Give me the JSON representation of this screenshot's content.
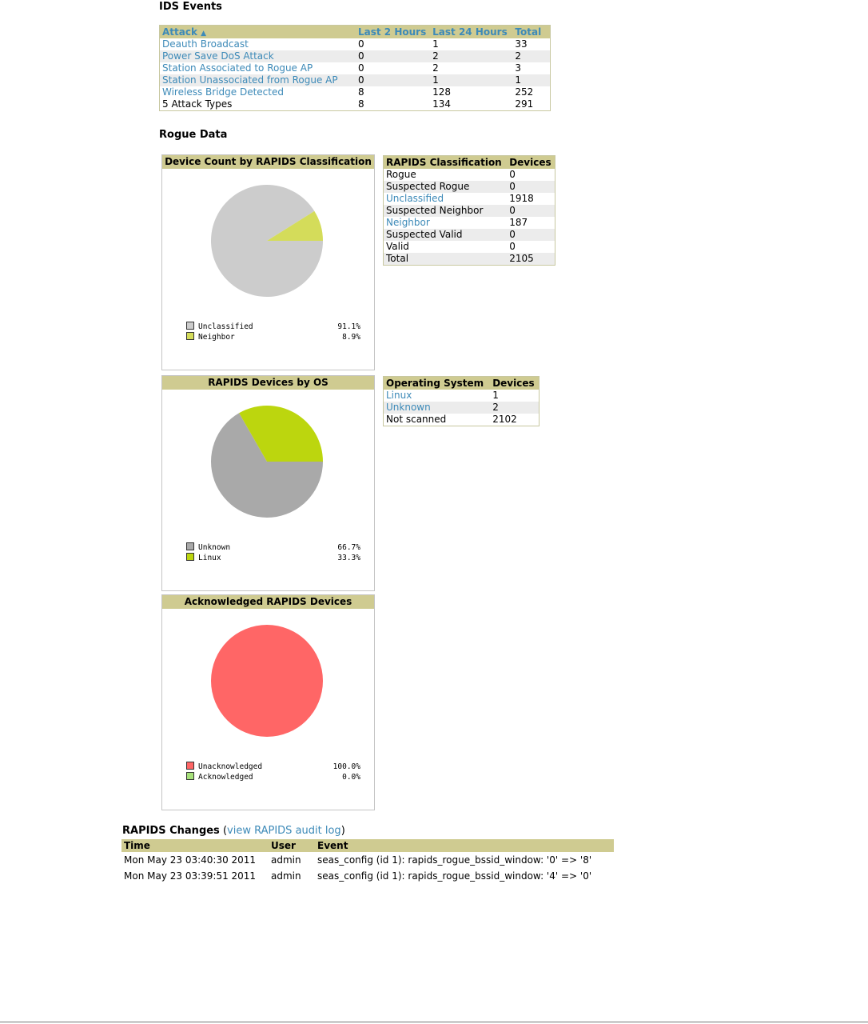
{
  "ids": {
    "title": "IDS Events",
    "headers": {
      "attack": "Attack",
      "sort_icon": "▲",
      "last2": "Last 2 Hours",
      "last24": "Last 24 Hours",
      "total": "Total"
    },
    "rows": [
      {
        "attack": "Deauth Broadcast",
        "last2": "0",
        "last24": "1",
        "total": "33"
      },
      {
        "attack": "Power Save DoS Attack",
        "last2": "0",
        "last24": "2",
        "total": "2"
      },
      {
        "attack": "Station Associated to Rogue AP",
        "last2": "0",
        "last24": "2",
        "total": "3"
      },
      {
        "attack": "Station Unassociated from Rogue AP",
        "last2": "0",
        "last24": "1",
        "total": "1"
      },
      {
        "attack": "Wireless Bridge Detected",
        "last2": "8",
        "last24": "128",
        "total": "252"
      }
    ],
    "footer": {
      "attack": "5 Attack Types",
      "last2": "8",
      "last24": "134",
      "total": "291"
    }
  },
  "rogue": {
    "title": "Rogue Data",
    "classification_panel": {
      "title": "Device Count by RAPIDS Classification",
      "legend": [
        {
          "label": "Unclassified",
          "pct": "91.1%",
          "color": "#cccccc"
        },
        {
          "label": "Neighbor",
          "pct": "8.9%",
          "color": "#d4dc5a"
        }
      ]
    },
    "classification_table": {
      "headers": {
        "name": "RAPIDS Classification",
        "count": "Devices"
      },
      "rows": [
        {
          "name": "Rogue",
          "count": "0",
          "link": false
        },
        {
          "name": "Suspected Rogue",
          "count": "0",
          "link": false
        },
        {
          "name": "Unclassified",
          "count": "1918",
          "link": true
        },
        {
          "name": "Suspected Neighbor",
          "count": "0",
          "link": false
        },
        {
          "name": "Neighbor",
          "count": "187",
          "link": true
        },
        {
          "name": "Suspected Valid",
          "count": "0",
          "link": false
        },
        {
          "name": "Valid",
          "count": "0",
          "link": false
        },
        {
          "name": "Total",
          "count": "2105",
          "link": false
        }
      ]
    },
    "os_panel": {
      "title": "RAPIDS Devices by OS",
      "legend": [
        {
          "label": "Unknown",
          "pct": "66.7%",
          "color": "#a9a9a9"
        },
        {
          "label": "Linux",
          "pct": "33.3%",
          "color": "#bcd60e"
        }
      ]
    },
    "os_table": {
      "headers": {
        "name": "Operating System",
        "count": "Devices"
      },
      "rows": [
        {
          "name": "Linux",
          "count": "1",
          "link": true
        },
        {
          "name": "Unknown",
          "count": "2",
          "link": true
        },
        {
          "name": "Not scanned",
          "count": "2102",
          "link": false
        }
      ]
    },
    "ack_panel": {
      "title": "Acknowledged RAPIDS Devices",
      "legend": [
        {
          "label": "Unacknowledged",
          "pct": "100.0%",
          "color": "#ff6666"
        },
        {
          "label": "Acknowledged",
          "pct": "0.0%",
          "color": "#a6e07a"
        }
      ]
    }
  },
  "changes": {
    "title": "RAPIDS Changes",
    "open_paren": "(",
    "link": "view RAPIDS audit log",
    "close_paren": ")",
    "headers": {
      "time": "Time",
      "user": "User",
      "event": "Event"
    },
    "rows": [
      {
        "time": "Mon May 23 03:40:30 2011",
        "user": "admin",
        "event": "seas_config (id 1): rapids_rogue_bssid_window: '0' => '8'"
      },
      {
        "time": "Mon May 23 03:39:51 2011",
        "user": "admin",
        "event": "seas_config (id 1): rapids_rogue_bssid_window: '4' => '0'"
      }
    ]
  }
}
